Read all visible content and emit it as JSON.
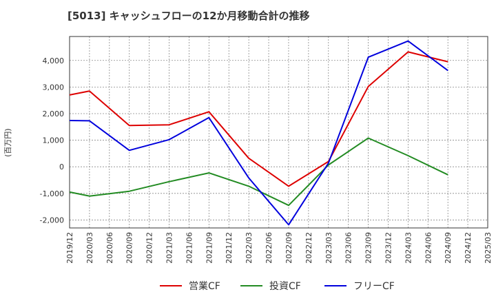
{
  "chart_data": {
    "type": "line",
    "title": "[5013]  キャッシュフローの12か月移動合計の推移",
    "ylabel": "(百万円)",
    "xlabel": "",
    "ylim": [
      -2300,
      4900
    ],
    "yticks": [
      4000,
      3000,
      2000,
      1000,
      0,
      -1000,
      -2000
    ],
    "ytick_labels": [
      "4,000",
      "3,000",
      "2,000",
      "1,000",
      "0",
      "-1,000",
      "-2,000"
    ],
    "categories": [
      "2019/12",
      "2020/03",
      "2020/06",
      "2020/09",
      "2020/12",
      "2021/03",
      "2021/06",
      "2021/09",
      "2021/12",
      "2022/03",
      "2022/06",
      "2022/09",
      "2022/12",
      "2023/03",
      "2023/06",
      "2023/09",
      "2023/12",
      "2024/03",
      "2024/06",
      "2024/09",
      "2024/12",
      "2025/03"
    ],
    "grid": true,
    "legend_position": "bottom",
    "series": [
      {
        "name": "営業CF",
        "color": "#dd0000",
        "values": [
          2700,
          2850,
          null,
          1550,
          null,
          1580,
          null,
          2070,
          null,
          320,
          null,
          -730,
          null,
          200,
          null,
          3020,
          null,
          4320,
          null,
          3950,
          null,
          null
        ]
      },
      {
        "name": "投資CF",
        "color": "#228b22",
        "values": [
          -950,
          -1100,
          null,
          -920,
          null,
          -560,
          null,
          -230,
          null,
          -730,
          null,
          -1450,
          null,
          70,
          null,
          1080,
          null,
          420,
          null,
          -300,
          null,
          null
        ]
      },
      {
        "name": "フリーCF",
        "color": "#0000dd",
        "values": [
          1740,
          1730,
          null,
          620,
          null,
          1020,
          null,
          1850,
          null,
          -420,
          null,
          -2180,
          null,
          140,
          null,
          4120,
          null,
          4730,
          null,
          3620,
          null,
          null
        ]
      }
    ]
  }
}
